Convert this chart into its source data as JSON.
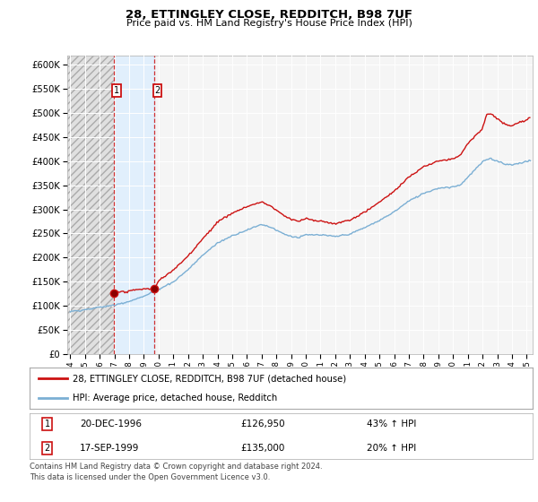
{
  "title": "28, ETTINGLEY CLOSE, REDDITCH, B98 7UF",
  "subtitle": "Price paid vs. HM Land Registry's House Price Index (HPI)",
  "ylim": [
    0,
    620000
  ],
  "yticks": [
    0,
    50000,
    100000,
    150000,
    200000,
    250000,
    300000,
    350000,
    400000,
    450000,
    500000,
    550000,
    600000
  ],
  "ytick_labels": [
    "£0",
    "£50K",
    "£100K",
    "£150K",
    "£200K",
    "£250K",
    "£300K",
    "£350K",
    "£400K",
    "£450K",
    "£500K",
    "£550K",
    "£600K"
  ],
  "hpi_color": "#7bafd4",
  "price_color": "#cc1111",
  "t1_year": 1996.958,
  "t2_year": 1999.708,
  "t1_price": 126950,
  "t2_price": 135000,
  "legend_entry1": "28, ETTINGLEY CLOSE, REDDITCH, B98 7UF (detached house)",
  "legend_entry2": "HPI: Average price, detached house, Redditch",
  "table_row1_date": "20-DEC-1996",
  "table_row1_price": "£126,950",
  "table_row1_hpi": "43% ↑ HPI",
  "table_row2_date": "17-SEP-1999",
  "table_row2_price": "£135,000",
  "table_row2_hpi": "20% ↑ HPI",
  "footnote1": "Contains HM Land Registry data © Crown copyright and database right 2024.",
  "footnote2": "This data is licensed under the Open Government Licence v3.0.",
  "background_color": "#ffffff",
  "plot_bg_color": "#f5f5f5",
  "hatch_bg": "#e8e8e8",
  "highlight_color": "#ddeeff",
  "xstart": 1993.8,
  "xend": 2025.4
}
